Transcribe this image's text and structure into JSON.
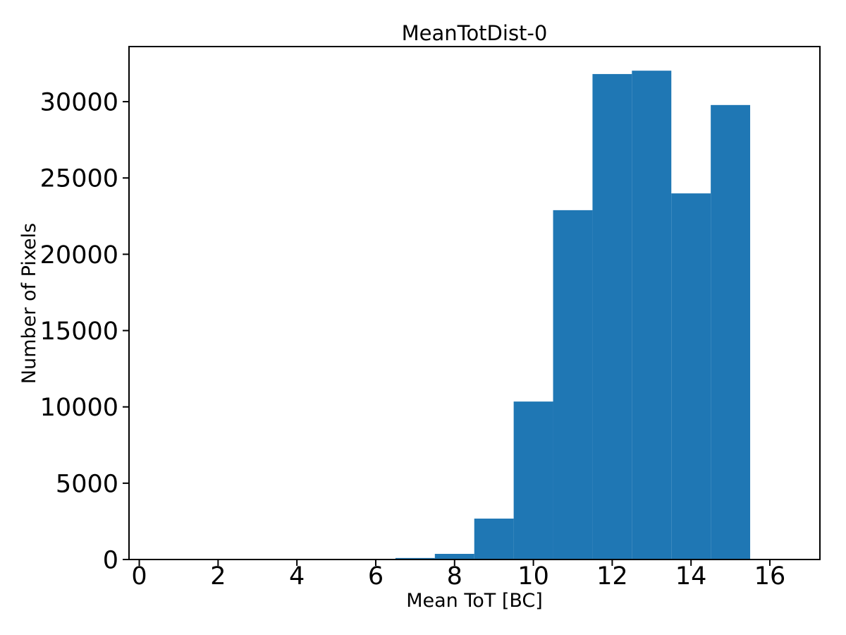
{
  "chart_data": {
    "type": "bar",
    "subtype": "histogram",
    "title": "MeanTotDist-0",
    "xlabel": "Mean ToT [BC]",
    "ylabel": "Number of Pixels",
    "bar_color": "#1f77b4",
    "axis_color": "#000000",
    "background_color": "#ffffff",
    "bin_edges": [
      6.5,
      7.5,
      8.5,
      9.5,
      10.5,
      11.5,
      12.5,
      13.5,
      14.5,
      15.5
    ],
    "counts": [
      100,
      370,
      2680,
      10350,
      22890,
      31810,
      32030,
      23990,
      29780
    ],
    "xticks": [
      0,
      2,
      4,
      6,
      8,
      10,
      12,
      14,
      16
    ],
    "yticks": [
      0,
      5000,
      10000,
      15000,
      20000,
      25000,
      30000
    ],
    "xlim": [
      -0.26,
      17.27
    ],
    "ylim": [
      0,
      33610
    ],
    "grid": false,
    "legend": null
  }
}
